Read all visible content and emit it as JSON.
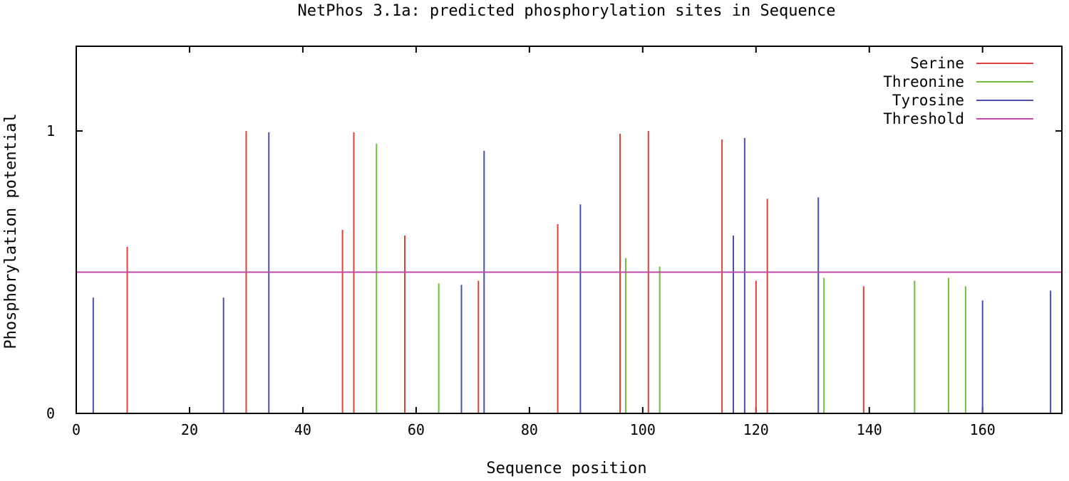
{
  "chart_data": {
    "type": "bar",
    "title": "NetPhos 3.1a: predicted phosphorylation sites in Sequence",
    "xlabel": "Sequence position",
    "ylabel": "Phosphorylation potential",
    "xlim": [
      0,
      174
    ],
    "ylim": [
      0,
      1.3
    ],
    "x_ticks": [
      0,
      20,
      40,
      60,
      80,
      100,
      120,
      140,
      160
    ],
    "y_ticks": [
      0,
      1
    ],
    "grid": false,
    "legend_position": "top-right",
    "threshold": 0.5,
    "series": [
      {
        "name": "Serine",
        "color": "#e0403c",
        "points": [
          [
            9,
            0.59
          ],
          [
            30,
            1.0
          ],
          [
            47,
            0.65
          ],
          [
            49,
            0.995
          ],
          [
            58,
            0.63
          ],
          [
            71,
            0.47
          ],
          [
            85,
            0.67
          ],
          [
            96,
            0.99
          ],
          [
            101,
            1.0
          ],
          [
            114,
            0.97
          ],
          [
            120,
            0.47
          ],
          [
            122,
            0.76
          ],
          [
            139,
            0.45
          ]
        ]
      },
      {
        "name": "Threonine",
        "color": "#6fbf3c",
        "points": [
          [
            53,
            0.955
          ],
          [
            64,
            0.46
          ],
          [
            97,
            0.55
          ],
          [
            103,
            0.52
          ],
          [
            132,
            0.48
          ],
          [
            148,
            0.47
          ],
          [
            154,
            0.48
          ],
          [
            157,
            0.45
          ]
        ]
      },
      {
        "name": "Tyrosine",
        "color": "#4a4fb0",
        "points": [
          [
            3,
            0.41
          ],
          [
            26,
            0.41
          ],
          [
            34,
            0.995
          ],
          [
            68,
            0.455
          ],
          [
            72,
            0.93
          ],
          [
            89,
            0.74
          ],
          [
            116,
            0.63
          ],
          [
            118,
            0.975
          ],
          [
            131,
            0.765
          ],
          [
            160,
            0.4
          ],
          [
            172,
            0.435
          ]
        ]
      },
      {
        "name": "Threshold",
        "color": "#c04aa8",
        "type": "hline",
        "value": 0.5
      }
    ]
  }
}
